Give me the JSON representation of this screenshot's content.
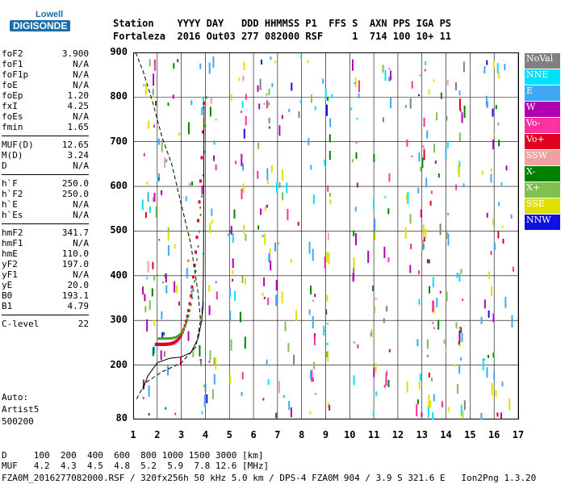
{
  "logo": {
    "line1": "Lowell",
    "line2": "DIGISONDE"
  },
  "header": {
    "row1": "Station    YYYY DAY   DDD HHMMSS P1  FFS S  AXN PPS IGA PS",
    "row2": "Fortaleza  2016 Out03 277 082000 RSF     1  714 100 10+ 11"
  },
  "params": [
    {
      "name": "foF2",
      "value": "3.900"
    },
    {
      "name": "foF1",
      "value": "N/A"
    },
    {
      "name": "foF1p",
      "value": "N/A"
    },
    {
      "name": "foE",
      "value": "N/A"
    },
    {
      "name": "foEp",
      "value": "1.20"
    },
    {
      "name": "fxI",
      "value": "4.25"
    },
    {
      "name": "foEs",
      "value": "N/A"
    },
    {
      "name": "fmin",
      "value": "1.65"
    },
    {
      "name": "MUF(D)",
      "value": "12.65"
    },
    {
      "name": "M(D)",
      "value": "3.24"
    },
    {
      "name": "D",
      "value": "N/A"
    },
    {
      "name": "h`F",
      "value": "250.0"
    },
    {
      "name": "h`F2",
      "value": "250.0"
    },
    {
      "name": "h`E",
      "value": "N/A"
    },
    {
      "name": "h`Es",
      "value": "N/A"
    },
    {
      "name": "hmF2",
      "value": "341.7"
    },
    {
      "name": "hmF1",
      "value": "N/A"
    },
    {
      "name": "hmE",
      "value": "110.0"
    },
    {
      "name": "yF2",
      "value": "197.0"
    },
    {
      "name": "yF1",
      "value": "N/A"
    },
    {
      "name": "yE",
      "value": "20.0"
    },
    {
      "name": "B0",
      "value": "193.1"
    },
    {
      "name": "B1",
      "value": "4.79"
    },
    {
      "name": "C-level",
      "value": "22"
    }
  ],
  "auto": {
    "line1": "Auto:",
    "line2": "Artist5",
    "line3": "500200"
  },
  "axes": {
    "y_ticks": [
      "900",
      "800",
      "700",
      "600",
      "500",
      "400",
      "300",
      "200",
      "80"
    ],
    "x_ticks": [
      "1",
      "2",
      "3",
      "4",
      "5",
      "6",
      "7",
      "8",
      "9",
      "10",
      "11",
      "12",
      "13",
      "14",
      "15",
      "16",
      "17"
    ],
    "x_range_mhz": [
      1,
      17
    ],
    "y_range_km": [
      80,
      900
    ]
  },
  "legend": [
    {
      "label": "NoVal",
      "color": "#808080"
    },
    {
      "label": "NNE",
      "color": "#00e0ff"
    },
    {
      "label": "E",
      "color": "#40a8f0"
    },
    {
      "label": "W",
      "color": "#b000b0"
    },
    {
      "label": "Vo-",
      "color": "#ff30a0"
    },
    {
      "label": "Vo+",
      "color": "#e00020"
    },
    {
      "label": "SSW",
      "color": "#f0a0a0"
    },
    {
      "label": "X-",
      "color": "#008000"
    },
    {
      "label": "X+",
      "color": "#80c050"
    },
    {
      "label": "SSE",
      "color": "#e0e000"
    },
    {
      "label": "NNW",
      "color": "#1010e0"
    }
  ],
  "bottom": {
    "d_row": "D     100  200  400  600  800 1000 1500 3000 [km]",
    "muf_row": "MUF   4.2  4.3  4.5  4.8  5.2  5.9  7.8 12.6 [MHz]",
    "file_row": "FZA0M_2016277082000.RSF / 320fx256h 50 kHz 5.0 km / DPS-4 FZA0M 904 / 3.9 S 321.6 E   Ion2Png 1.3.20"
  }
}
